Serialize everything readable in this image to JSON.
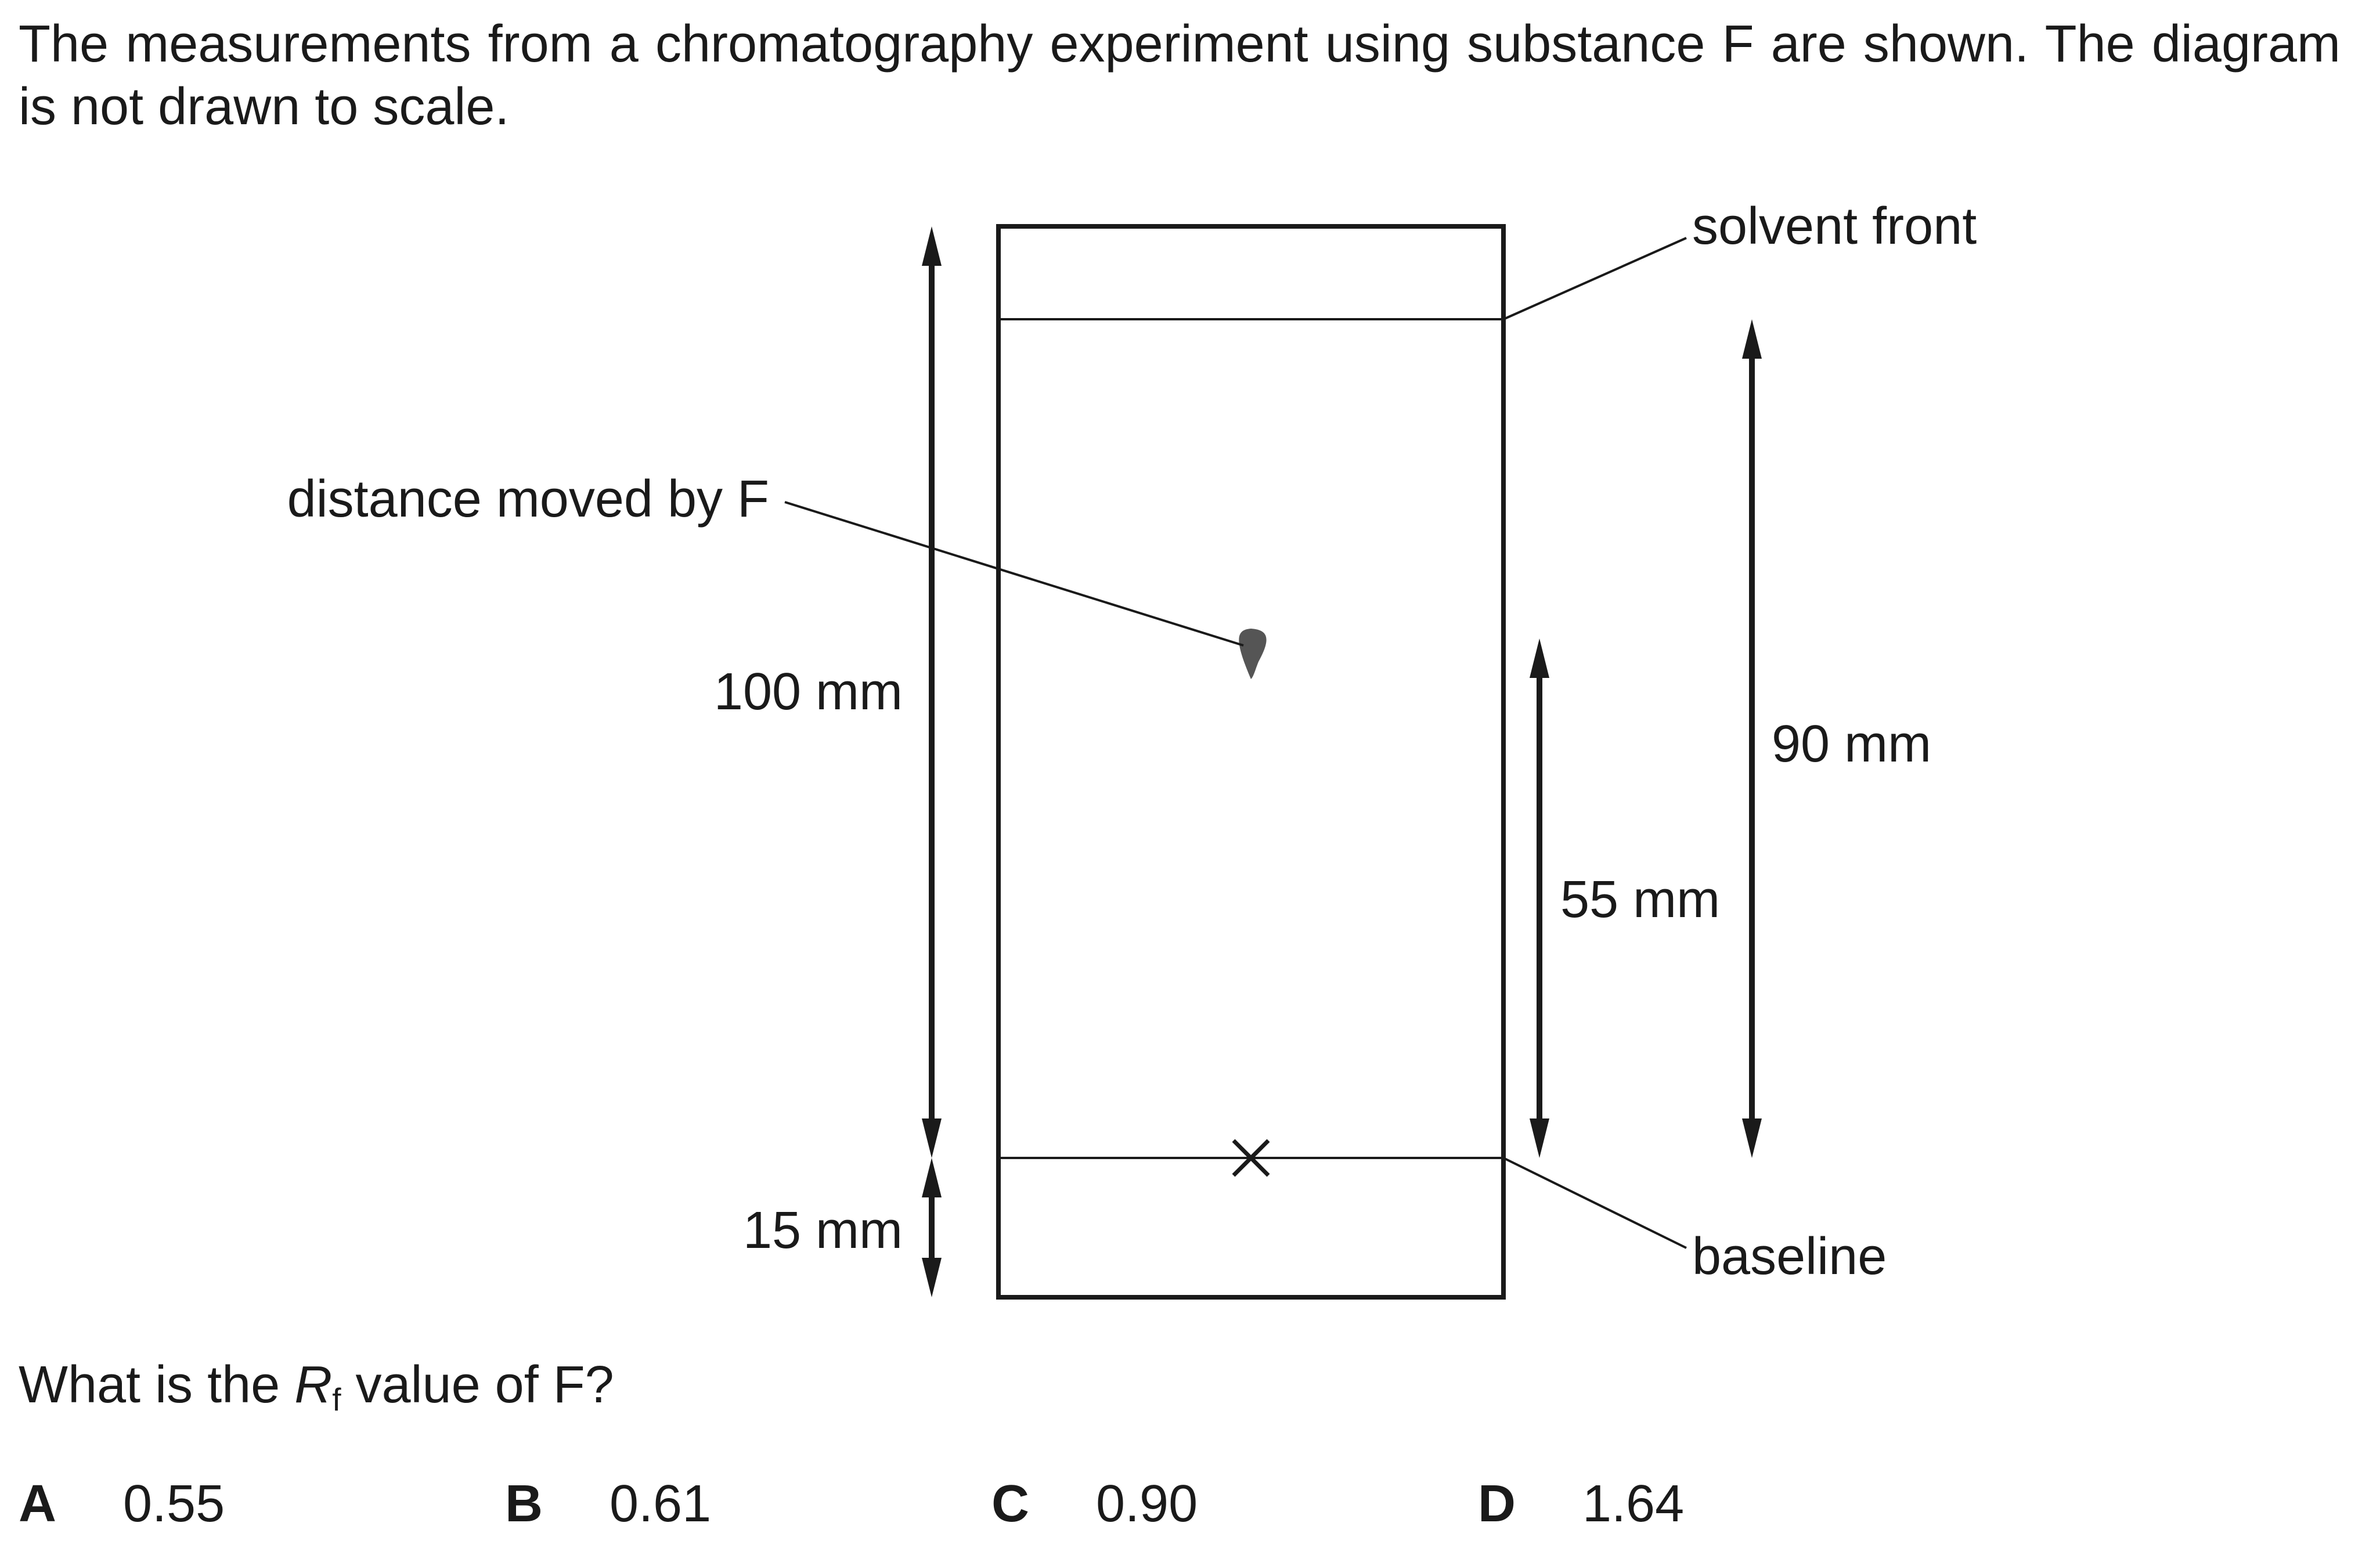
{
  "question": {
    "stem": "The measurements from a chromatography experiment using substance F are shown. The diagram is not drawn to scale.",
    "prompt_before": "What is the ",
    "prompt_r": "R",
    "prompt_sub": "f",
    "prompt_after": " value of F?"
  },
  "diagram": {
    "labels": {
      "solvent_front": "solvent front",
      "baseline": "baseline",
      "distance_moved": "distance moved by F",
      "paper_height": "100 mm",
      "bottom_gap": "15 mm",
      "spot_distance": "55 mm",
      "solvent_distance": "90 mm"
    }
  },
  "options": [
    {
      "letter": "A",
      "value": "0.55"
    },
    {
      "letter": "B",
      "value": "0.61"
    },
    {
      "letter": "C",
      "value": "0.90"
    },
    {
      "letter": "D",
      "value": "1.64"
    }
  ]
}
